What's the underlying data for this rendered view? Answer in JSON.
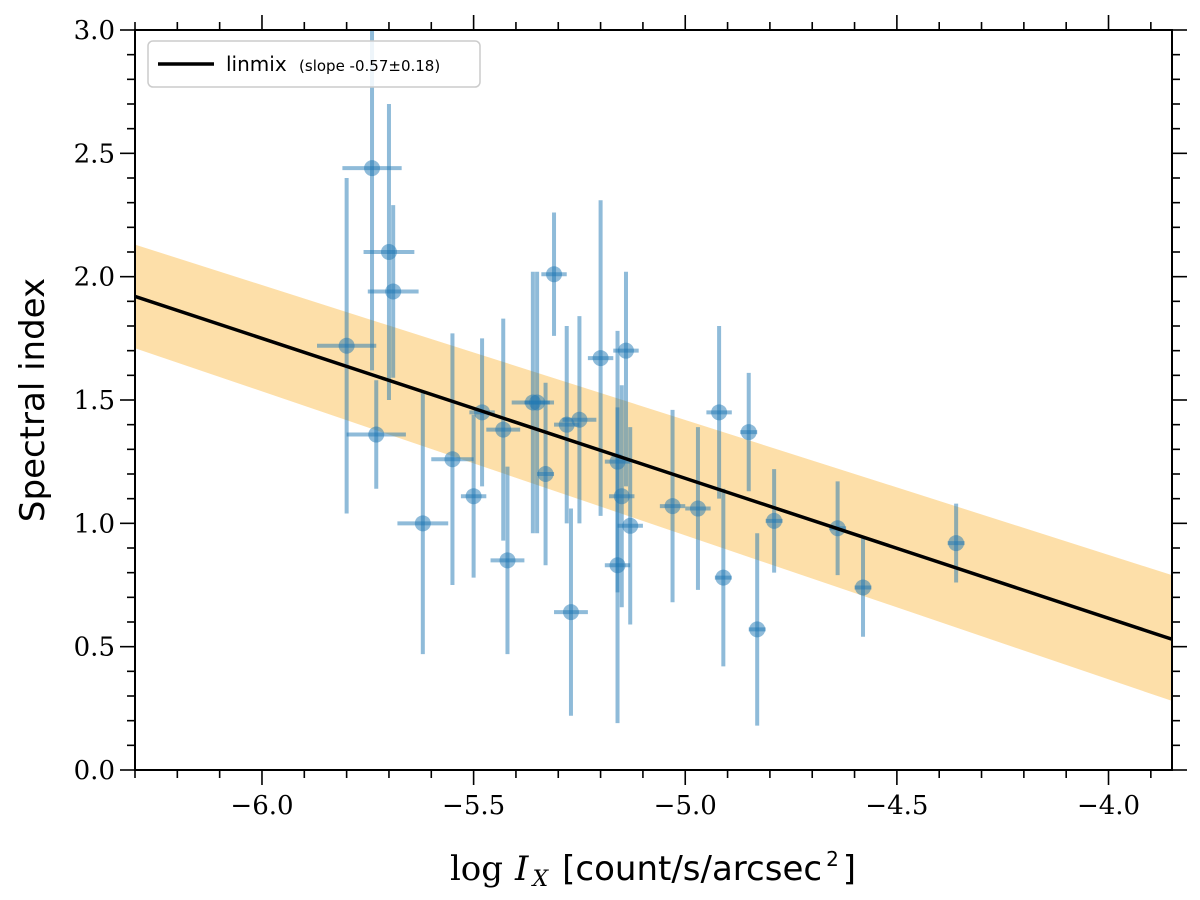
{
  "chart_data": {
    "type": "scatter",
    "xlabel_prefix": "log",
    "xlabel_var": "I",
    "xlabel_sub": "X",
    "xlabel_units": "[count/s/arcsec",
    "xlabel_sup": "2",
    "xlabel_close": "]",
    "ylabel": "Spectral index",
    "xlim": [
      -6.3,
      -3.85
    ],
    "ylim": [
      0.0,
      3.0
    ],
    "xticks": [
      -6.0,
      -5.5,
      -5.0,
      -4.5,
      -4.0
    ],
    "xtick_labels": [
      "−6.0",
      "−5.5",
      "−5.0",
      "−4.5",
      "−4.0"
    ],
    "yticks": [
      0.0,
      0.5,
      1.0,
      1.5,
      2.0,
      2.5,
      3.0
    ],
    "ytick_labels": [
      "0.0",
      "0.5",
      "1.0",
      "1.5",
      "2.0",
      "2.5",
      "3.0"
    ],
    "legend": {
      "label": "linmix",
      "note": "(slope -0.57±0.18)",
      "position": "top-left"
    },
    "fit": {
      "name": "linmix",
      "slope": -0.57,
      "slope_err": 0.18,
      "x": [
        -6.3,
        -3.85
      ],
      "y": [
        1.92,
        0.53
      ],
      "band_upper": [
        2.13,
        0.79
      ],
      "band_lower": [
        1.71,
        0.28
      ]
    },
    "colors": {
      "points": "#1f77b4",
      "band": "#fdd99a",
      "line": "#000000"
    },
    "points": [
      {
        "x": -5.8,
        "y": 1.72,
        "xerr": 0.07,
        "yerr_lo": 0.68,
        "yerr_hi": 0.68
      },
      {
        "x": -5.74,
        "y": 2.44,
        "xerr": 0.07,
        "yerr_lo": 0.82,
        "yerr_hi": 0.6
      },
      {
        "x": -5.73,
        "y": 1.36,
        "xerr": 0.07,
        "yerr_lo": 0.22,
        "yerr_hi": 0.22
      },
      {
        "x": -5.7,
        "y": 2.1,
        "xerr": 0.06,
        "yerr_lo": 0.6,
        "yerr_hi": 0.6
      },
      {
        "x": -5.69,
        "y": 1.94,
        "xerr": 0.06,
        "yerr_lo": 0.35,
        "yerr_hi": 0.35
      },
      {
        "x": -5.62,
        "y": 1.0,
        "xerr": 0.06,
        "yerr_lo": 0.53,
        "yerr_hi": 0.53
      },
      {
        "x": -5.55,
        "y": 1.26,
        "xerr": 0.05,
        "yerr_lo": 0.51,
        "yerr_hi": 0.51
      },
      {
        "x": -5.5,
        "y": 1.11,
        "xerr": 0.03,
        "yerr_lo": 0.33,
        "yerr_hi": 0.33
      },
      {
        "x": -5.48,
        "y": 1.45,
        "xerr": 0.03,
        "yerr_lo": 0.3,
        "yerr_hi": 0.3
      },
      {
        "x": -5.43,
        "y": 1.38,
        "xerr": 0.04,
        "yerr_lo": 0.45,
        "yerr_hi": 0.45
      },
      {
        "x": -5.42,
        "y": 0.85,
        "xerr": 0.04,
        "yerr_lo": 0.38,
        "yerr_hi": 0.38
      },
      {
        "x": -5.36,
        "y": 1.49,
        "xerr": 0.05,
        "yerr_lo": 0.53,
        "yerr_hi": 0.53
      },
      {
        "x": -5.35,
        "y": 1.49,
        "xerr": 0.03,
        "yerr_lo": 0.53,
        "yerr_hi": 0.53
      },
      {
        "x": -5.33,
        "y": 1.2,
        "xerr": 0.02,
        "yerr_lo": 0.37,
        "yerr_hi": 0.37
      },
      {
        "x": -5.31,
        "y": 2.01,
        "xerr": 0.03,
        "yerr_lo": 0.25,
        "yerr_hi": 0.25
      },
      {
        "x": -5.28,
        "y": 1.4,
        "xerr": 0.03,
        "yerr_lo": 0.4,
        "yerr_hi": 0.4
      },
      {
        "x": -5.27,
        "y": 0.64,
        "xerr": 0.04,
        "yerr_lo": 0.42,
        "yerr_hi": 0.42
      },
      {
        "x": -5.25,
        "y": 1.42,
        "xerr": 0.04,
        "yerr_lo": 0.42,
        "yerr_hi": 0.42
      },
      {
        "x": -5.2,
        "y": 1.67,
        "xerr": 0.03,
        "yerr_lo": 0.64,
        "yerr_hi": 0.64
      },
      {
        "x": -5.16,
        "y": 1.25,
        "xerr": 0.03,
        "yerr_lo": 0.53,
        "yerr_hi": 0.53
      },
      {
        "x": -5.16,
        "y": 0.83,
        "xerr": 0.03,
        "yerr_lo": 0.64,
        "yerr_hi": 0.64
      },
      {
        "x": -5.15,
        "y": 1.11,
        "xerr": 0.03,
        "yerr_lo": 0.45,
        "yerr_hi": 0.45
      },
      {
        "x": -5.14,
        "y": 1.7,
        "xerr": 0.03,
        "yerr_lo": 0.55,
        "yerr_hi": 0.32
      },
      {
        "x": -5.13,
        "y": 0.99,
        "xerr": 0.03,
        "yerr_lo": 0.4,
        "yerr_hi": 0.4
      },
      {
        "x": -5.03,
        "y": 1.07,
        "xerr": 0.03,
        "yerr_lo": 0.39,
        "yerr_hi": 0.39
      },
      {
        "x": -4.97,
        "y": 1.06,
        "xerr": 0.03,
        "yerr_lo": 0.33,
        "yerr_hi": 0.33
      },
      {
        "x": -4.92,
        "y": 1.45,
        "xerr": 0.03,
        "yerr_lo": 0.35,
        "yerr_hi": 0.35
      },
      {
        "x": -4.91,
        "y": 0.78,
        "xerr": 0.02,
        "yerr_lo": 0.36,
        "yerr_hi": 0.36
      },
      {
        "x": -4.85,
        "y": 1.37,
        "xerr": 0.02,
        "yerr_lo": 0.24,
        "yerr_hi": 0.24
      },
      {
        "x": -4.83,
        "y": 0.57,
        "xerr": 0.02,
        "yerr_lo": 0.39,
        "yerr_hi": 0.39
      },
      {
        "x": -4.79,
        "y": 1.01,
        "xerr": 0.02,
        "yerr_lo": 0.21,
        "yerr_hi": 0.21
      },
      {
        "x": -4.64,
        "y": 0.98,
        "xerr": 0.02,
        "yerr_lo": 0.19,
        "yerr_hi": 0.19
      },
      {
        "x": -4.58,
        "y": 0.74,
        "xerr": 0.02,
        "yerr_lo": 0.2,
        "yerr_hi": 0.2
      },
      {
        "x": -4.36,
        "y": 0.92,
        "xerr": 0.02,
        "yerr_lo": 0.16,
        "yerr_hi": 0.16
      }
    ]
  }
}
